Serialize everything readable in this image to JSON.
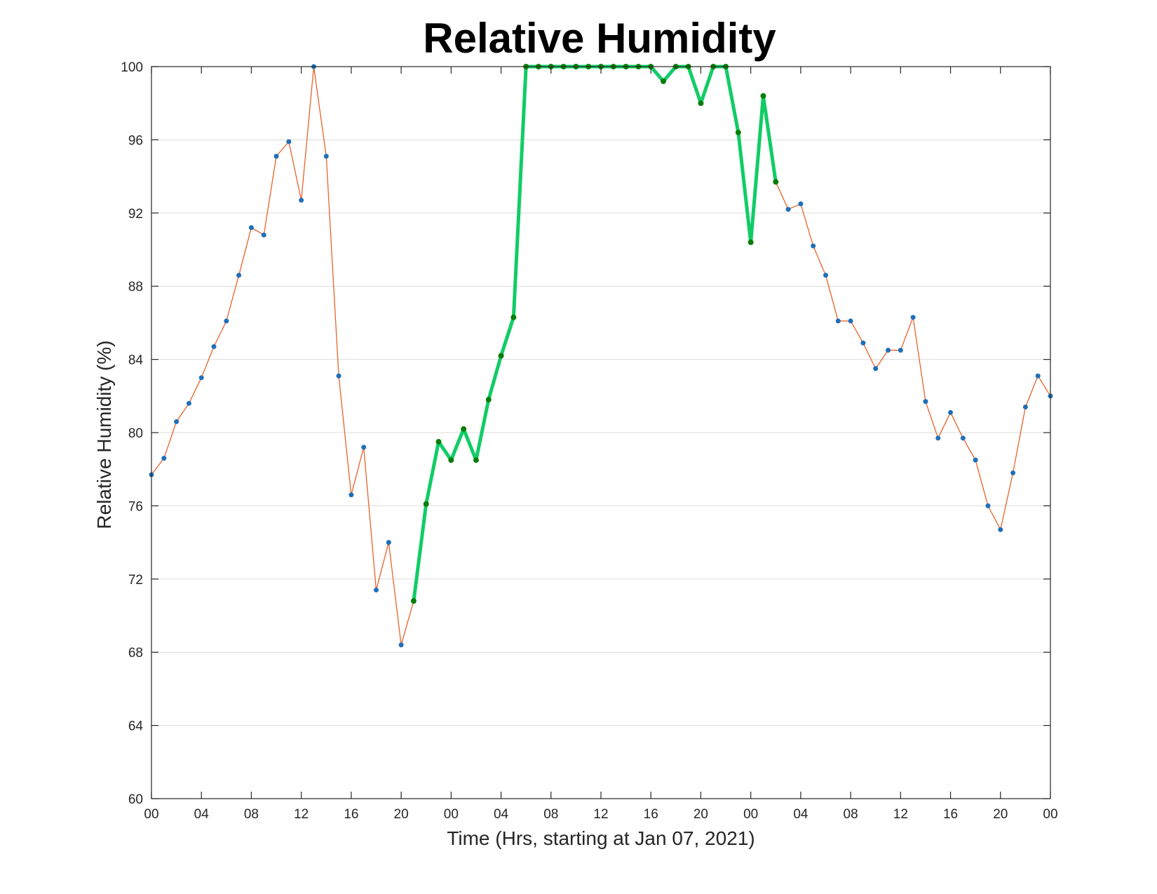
{
  "chart_data": {
    "type": "line",
    "title": "Relative Humidity",
    "xlabel": "Time (Hrs, starting at Jan 07, 2021)",
    "ylabel": "Relative Humidity (%)",
    "ylim": [
      60,
      100
    ],
    "yticks": [
      60,
      64,
      68,
      72,
      76,
      80,
      84,
      88,
      92,
      96,
      100
    ],
    "xlim": [
      0,
      72
    ],
    "xticks": [
      0,
      4,
      8,
      12,
      16,
      20,
      24,
      28,
      32,
      36,
      40,
      44,
      48,
      52,
      56,
      60,
      64,
      68,
      72
    ],
    "xtick_labels": [
      "00",
      "04",
      "08",
      "12",
      "16",
      "20",
      "00",
      "04",
      "08",
      "12",
      "16",
      "20",
      "00",
      "04",
      "08",
      "12",
      "16",
      "20",
      "00"
    ],
    "grid": true,
    "x": [
      0,
      1,
      2,
      3,
      4,
      5,
      6,
      7,
      8,
      9,
      10,
      11,
      12,
      13,
      14,
      15,
      16,
      17,
      18,
      19,
      20,
      21,
      22,
      23,
      24,
      25,
      26,
      27,
      28,
      29,
      30,
      31,
      32,
      33,
      34,
      35,
      36,
      37,
      38,
      39,
      40,
      41,
      42,
      43,
      44,
      45,
      46,
      47,
      48,
      49,
      50,
      51,
      52,
      53,
      54,
      55,
      56,
      57,
      58,
      59,
      60,
      61,
      62,
      63,
      64,
      65,
      66,
      67,
      68,
      69,
      70,
      71,
      72
    ],
    "series": [
      {
        "values": [
          77.7,
          78.6,
          80.6,
          81.6,
          83.0,
          84.7,
          86.1,
          88.6,
          91.2,
          90.8,
          95.1,
          95.9,
          92.7,
          100.0,
          95.1,
          83.1,
          76.6,
          79.2,
          71.4,
          74.0,
          68.4,
          70.8,
          76.1,
          79.5,
          78.5,
          80.2,
          78.5,
          81.8,
          84.2,
          86.3,
          100.0,
          100.0,
          100.0,
          100.0,
          100.0,
          100.0,
          100.0,
          100.0,
          100.0,
          100.0,
          100.0,
          99.2,
          100.0,
          100.0,
          98.0,
          100.0,
          100.0,
          96.4,
          90.4,
          98.4,
          93.7,
          92.2,
          92.5,
          90.2,
          88.6,
          86.1,
          86.1,
          84.9,
          83.5,
          84.5,
          84.5,
          86.3,
          81.7,
          79.7,
          81.1,
          79.7,
          78.5,
          76.0,
          74.7,
          77.8,
          81.4,
          83.1,
          82.0
        ],
        "highlight_range": [
          21,
          50
        ]
      }
    ]
  }
}
